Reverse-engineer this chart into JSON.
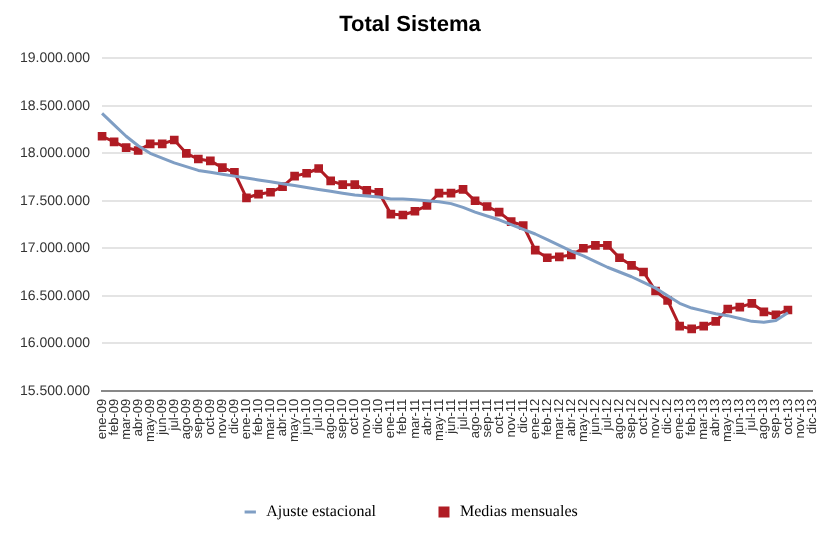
{
  "chart_data": {
    "type": "line",
    "title": "Total Sistema",
    "categories": [
      "ene-09",
      "feb-09",
      "mar-09",
      "abr-09",
      "may-09",
      "jun-09",
      "jul-09",
      "ago-09",
      "sep-09",
      "oct-09",
      "nov-09",
      "dic-09",
      "ene-10",
      "feb-10",
      "mar-10",
      "abr-10",
      "may-10",
      "jun-10",
      "jul-10",
      "ago-10",
      "sep-10",
      "oct-10",
      "nov-10",
      "dic-10",
      "ene-11",
      "feb-11",
      "mar-11",
      "abr-11",
      "may-11",
      "jun-11",
      "jul-11",
      "ago-11",
      "sep-11",
      "oct-11",
      "nov-11",
      "dic-11",
      "ene-12",
      "feb-12",
      "mar-12",
      "abr-12",
      "may-12",
      "jun-12",
      "jul-12",
      "ago-12",
      "sep-12",
      "oct-12",
      "nov-12",
      "dic-12",
      "ene-13",
      "feb-13",
      "mar-13",
      "abr-13",
      "may-13",
      "jun-13",
      "jul-13",
      "ago-13",
      "sep-13",
      "oct-13",
      "nov-13",
      "dic-13"
    ],
    "series": [
      {
        "name": "Ajuste estacional",
        "color": "#7f9ec4",
        "marker": "none",
        "values": [
          18420000,
          18300000,
          18180000,
          18080000,
          18000000,
          17950000,
          17900000,
          17860000,
          17820000,
          17800000,
          17780000,
          17760000,
          17740000,
          17720000,
          17700000,
          17680000,
          17660000,
          17640000,
          17620000,
          17600000,
          17580000,
          17560000,
          17550000,
          17540000,
          17520000,
          17520000,
          17510000,
          17500000,
          17490000,
          17470000,
          17430000,
          17380000,
          17340000,
          17300000,
          17250000,
          17200000,
          17150000,
          17090000,
          17030000,
          16970000,
          16920000,
          16860000,
          16800000,
          16750000,
          16700000,
          16640000,
          16580000,
          16500000,
          16420000,
          16370000,
          16340000,
          16310000,
          16290000,
          16260000,
          16230000,
          16220000,
          16240000,
          16320000,
          null,
          null
        ]
      },
      {
        "name": "Medias mensuales",
        "color": "#b01c24",
        "marker": "square",
        "values": [
          18180000,
          18120000,
          18060000,
          18030000,
          18100000,
          18100000,
          18140000,
          18000000,
          17940000,
          17920000,
          17850000,
          17800000,
          17530000,
          17570000,
          17590000,
          17650000,
          17760000,
          17790000,
          17840000,
          17710000,
          17670000,
          17670000,
          17610000,
          17590000,
          17360000,
          17350000,
          17390000,
          17450000,
          17580000,
          17580000,
          17620000,
          17500000,
          17440000,
          17380000,
          17280000,
          17240000,
          16980000,
          16900000,
          16910000,
          16930000,
          17000000,
          17030000,
          17030000,
          16900000,
          16820000,
          16750000,
          16550000,
          16450000,
          16180000,
          16150000,
          16180000,
          16230000,
          16360000,
          16380000,
          16420000,
          16330000,
          16300000,
          16350000,
          null,
          null
        ]
      }
    ],
    "ylim": [
      15500000,
      19000000
    ],
    "yticks": [
      {
        "value": 15500000,
        "label": "15.500.000"
      },
      {
        "value": 16000000,
        "label": "16.000.000"
      },
      {
        "value": 16500000,
        "label": "16.500.000"
      },
      {
        "value": 17000000,
        "label": "17.000.000"
      },
      {
        "value": 17500000,
        "label": "17.500.000"
      },
      {
        "value": 18000000,
        "label": "18.000.000"
      },
      {
        "value": 18500000,
        "label": "18.500.000"
      },
      {
        "value": 19000000,
        "label": "19.000.000"
      }
    ],
    "grid": "y",
    "legend": "bottom"
  }
}
